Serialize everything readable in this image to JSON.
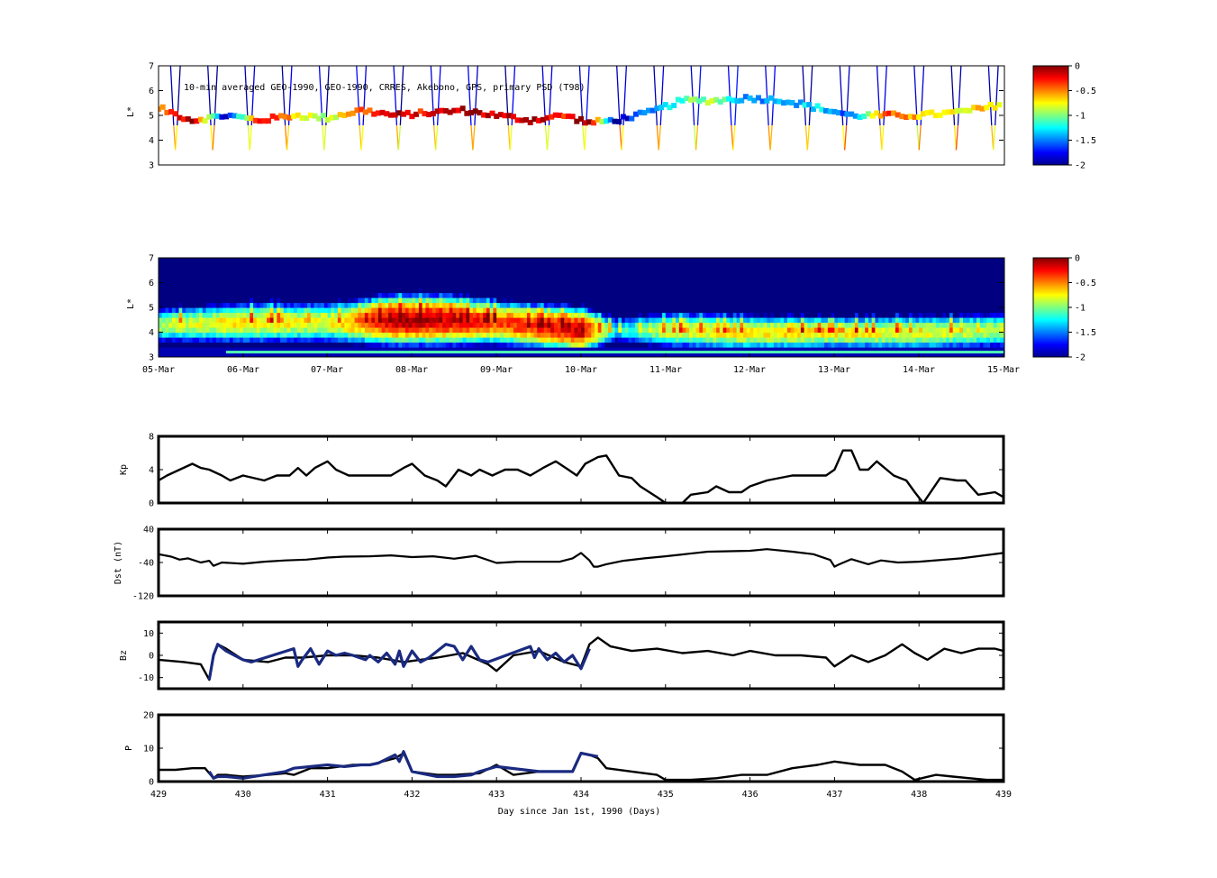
{
  "chart_data": [
    {
      "type": "scatter",
      "title": "10-min averaged GEO-1990, GEO-1990, CRRES, Akebono, GPS, primary PSD (T98)",
      "ylabel": "L*",
      "ylim": [
        3,
        7
      ],
      "yticks": [
        "3",
        "4",
        "5",
        "6",
        "7"
      ],
      "colorbar": {
        "ticks": [
          "0",
          "-0.5",
          "-1",
          "-1.5",
          "-2"
        ],
        "range": [
          -2,
          0
        ]
      },
      "track": {
        "orbit_period_days": 0.44,
        "orbit_start": 429.2,
        "geo_band": [
          {
            "x": 429.0,
            "y": 5.3,
            "c": -0.6
          },
          {
            "x": 429.4,
            "y": 4.8,
            "c": -0.1
          },
          {
            "x": 429.8,
            "y": 5.0,
            "c": -1.9
          },
          {
            "x": 430.2,
            "y": 4.8,
            "c": -0.2
          },
          {
            "x": 430.6,
            "y": 5.0,
            "c": -0.6
          },
          {
            "x": 431.0,
            "y": 4.9,
            "c": -1.0
          },
          {
            "x": 431.4,
            "y": 5.2,
            "c": -0.4
          },
          {
            "x": 431.8,
            "y": 5.0,
            "c": -0.1
          },
          {
            "x": 432.2,
            "y": 5.1,
            "c": -0.3
          },
          {
            "x": 432.6,
            "y": 5.2,
            "c": -0.1
          },
          {
            "x": 433.0,
            "y": 5.0,
            "c": -0.2
          },
          {
            "x": 433.4,
            "y": 4.8,
            "c": -0.05
          },
          {
            "x": 433.8,
            "y": 5.0,
            "c": -0.3
          },
          {
            "x": 434.1,
            "y": 4.7,
            "c": -0.02
          },
          {
            "x": 434.4,
            "y": 4.8,
            "c": -1.9
          },
          {
            "x": 434.8,
            "y": 5.1,
            "c": -1.5
          },
          {
            "x": 435.2,
            "y": 5.6,
            "c": -1.1
          },
          {
            "x": 435.6,
            "y": 5.6,
            "c": -0.9
          },
          {
            "x": 436.0,
            "y": 5.7,
            "c": -1.5
          },
          {
            "x": 436.4,
            "y": 5.6,
            "c": -1.4
          },
          {
            "x": 436.8,
            "y": 5.3,
            "c": -1.3
          },
          {
            "x": 437.2,
            "y": 5.0,
            "c": -1.6
          },
          {
            "x": 437.6,
            "y": 5.0,
            "c": -0.4
          },
          {
            "x": 438.0,
            "y": 5.0,
            "c": -0.6
          },
          {
            "x": 438.4,
            "y": 5.1,
            "c": -0.8
          },
          {
            "x": 438.8,
            "y": 5.3,
            "c": -0.6
          },
          {
            "x": 439.0,
            "y": 5.5,
            "c": -0.7
          }
        ]
      }
    },
    {
      "type": "heatmap",
      "ylabel": "L*",
      "ylim": [
        3,
        7
      ],
      "yticks": [
        "3",
        "4",
        "5",
        "6",
        "7"
      ],
      "xticks": [
        "05-Mar",
        "06-Mar",
        "07-Mar",
        "08-Mar",
        "09-Mar",
        "10-Mar",
        "11-Mar",
        "12-Mar",
        "13-Mar",
        "14-Mar",
        "15-Mar"
      ],
      "colorbar": {
        "ticks": [
          "0",
          "-0.5",
          "-1",
          "-1.5",
          "-2"
        ],
        "range": [
          -2,
          0
        ]
      },
      "belt": [
        {
          "x": 429.0,
          "peak_L": 4.2,
          "peak_c": -0.9,
          "width": 0.7
        },
        {
          "x": 430.0,
          "peak_L": 4.3,
          "peak_c": -0.7,
          "width": 0.8
        },
        {
          "x": 431.0,
          "peak_L": 4.3,
          "peak_c": -0.8,
          "width": 0.8
        },
        {
          "x": 431.8,
          "peak_L": 4.4,
          "peak_c": -0.1,
          "width": 0.9
        },
        {
          "x": 432.4,
          "peak_L": 4.4,
          "peak_c": -0.2,
          "width": 0.9
        },
        {
          "x": 433.0,
          "peak_L": 4.3,
          "peak_c": -0.4,
          "width": 0.8
        },
        {
          "x": 434.0,
          "peak_L": 4.0,
          "peak_c": -0.15,
          "width": 0.8
        },
        {
          "x": 434.4,
          "peak_L": 4.0,
          "peak_c": -1.3,
          "width": 0.6
        },
        {
          "x": 435.0,
          "peak_L": 4.0,
          "peak_c": -0.8,
          "width": 0.7
        },
        {
          "x": 436.0,
          "peak_L": 3.9,
          "peak_c": -0.7,
          "width": 0.7
        },
        {
          "x": 437.0,
          "peak_L": 3.9,
          "peak_c": -0.7,
          "width": 0.6
        },
        {
          "x": 438.0,
          "peak_L": 3.9,
          "peak_c": -0.8,
          "width": 0.7
        },
        {
          "x": 439.0,
          "peak_L": 4.0,
          "peak_c": -0.9,
          "width": 0.7
        }
      ]
    },
    {
      "type": "line",
      "ylabel": "Kp",
      "ylim": [
        0,
        8
      ],
      "yticks": [
        "0",
        "4",
        "8"
      ],
      "series": [
        {
          "x": [
            429.0,
            429.1,
            429.25,
            429.4,
            429.5,
            429.6,
            429.75,
            429.85,
            430.0,
            430.25,
            430.4,
            430.55,
            430.65,
            430.75,
            430.85,
            431.0,
            431.1,
            431.25,
            431.5,
            431.75,
            431.9,
            432.0,
            432.15,
            432.3,
            432.4,
            432.55,
            432.7,
            432.8,
            432.95,
            433.1,
            433.25,
            433.4,
            433.55,
            433.7,
            433.85,
            433.95,
            434.05,
            434.2,
            434.3,
            434.45,
            434.6,
            434.7,
            434.9,
            435.0,
            435.2,
            435.3,
            435.5,
            435.6,
            435.75,
            435.9,
            436.0,
            436.2,
            436.5,
            436.75,
            436.9,
            437.0,
            437.1,
            437.2,
            437.3,
            437.4,
            437.5,
            437.7,
            437.85,
            437.95,
            438.05,
            438.25,
            438.45,
            438.55,
            438.7,
            438.9,
            439.0
          ],
          "values": [
            2.7,
            3.3,
            4,
            4.7,
            4.2,
            4,
            3.3,
            2.7,
            3.3,
            2.7,
            3.3,
            3.3,
            4.2,
            3.3,
            4.2,
            5,
            4,
            3.3,
            3.3,
            3.3,
            4.2,
            4.7,
            3.3,
            2.7,
            2,
            4,
            3.3,
            4,
            3.3,
            4,
            4,
            3.3,
            4.2,
            5,
            4,
            3.3,
            4.7,
            5.5,
            5.7,
            3.3,
            3,
            2,
            0.7,
            0,
            0,
            1,
            1.3,
            2,
            1.3,
            1.3,
            2,
            2.7,
            3.3,
            3.3,
            3.3,
            4,
            6.3,
            6.3,
            4,
            4,
            5,
            3.3,
            2.7,
            1.3,
            0,
            3,
            2.7,
            2.7,
            1,
            1.3,
            0.7
          ]
        }
      ]
    },
    {
      "type": "line",
      "ylabel": "Dst (nT)",
      "ylim": [
        -120,
        40
      ],
      "yticks": [
        "-120",
        "-40",
        "40"
      ],
      "series": [
        {
          "x": [
            429.0,
            429.15,
            429.25,
            429.35,
            429.5,
            429.6,
            429.65,
            429.75,
            430.0,
            430.25,
            430.5,
            430.75,
            431.0,
            431.2,
            431.5,
            431.75,
            432.0,
            432.25,
            432.5,
            432.75,
            433.0,
            433.25,
            433.5,
            433.75,
            433.9,
            434.0,
            434.1,
            434.15,
            434.2,
            434.3,
            434.5,
            434.75,
            435.0,
            435.5,
            436.0,
            436.2,
            436.5,
            436.75,
            436.95,
            437.0,
            437.05,
            437.2,
            437.4,
            437.55,
            437.75,
            438.0,
            438.5,
            439.0
          ],
          "values": [
            -20,
            -26,
            -33,
            -30,
            -40,
            -36,
            -48,
            -40,
            -43,
            -38,
            -35,
            -33,
            -28,
            -26,
            -25,
            -23,
            -27,
            -25,
            -31,
            -24,
            -41,
            -38,
            -38,
            -38,
            -30,
            -17,
            -35,
            -50,
            -50,
            -44,
            -36,
            -30,
            -25,
            -14,
            -12,
            -8,
            -14,
            -20,
            -34,
            -50,
            -45,
            -32,
            -44,
            -35,
            -40,
            -38,
            -30,
            -17
          ]
        }
      ]
    },
    {
      "type": "line",
      "ylabel": "Bz",
      "ylim": [
        -15,
        15
      ],
      "yticks": [
        "-10",
        "0",
        "10"
      ],
      "series": [
        {
          "name": "black",
          "x": [
            429.0,
            429.3,
            429.5,
            429.6,
            429.65,
            429.7,
            429.8,
            430.0,
            430.3,
            430.5,
            430.7,
            431.0,
            431.3,
            431.6,
            431.9,
            432.1,
            432.3,
            432.6,
            432.9,
            433.0,
            433.2,
            433.5,
            433.8,
            434.0,
            434.1,
            434.2,
            434.35,
            434.6,
            434.9,
            435.2,
            435.5,
            435.8,
            436.0,
            436.3,
            436.6,
            436.9,
            437.0,
            437.2,
            437.4,
            437.6,
            437.8,
            437.95,
            438.1,
            438.3,
            438.5,
            438.7,
            438.9,
            439.0
          ],
          "values": [
            -2,
            -3,
            -4,
            -11,
            0,
            5,
            3,
            -2,
            -3,
            -1,
            -1,
            0,
            0,
            -1,
            -3,
            -2,
            -1,
            1,
            -4,
            -7,
            0,
            2,
            -3,
            -5,
            5,
            8,
            4,
            2,
            3,
            1,
            2,
            0,
            2,
            0,
            0,
            -1,
            -5,
            0,
            -3,
            0,
            5,
            1,
            -2,
            3,
            1,
            3,
            3,
            2
          ]
        },
        {
          "name": "blue",
          "x": [
            429.6,
            429.65,
            429.7,
            429.8,
            430.0,
            430.1,
            430.6,
            430.65,
            430.7,
            430.8,
            430.9,
            431.0,
            431.1,
            431.2,
            431.3,
            431.45,
            431.5,
            431.6,
            431.7,
            431.8,
            431.85,
            431.9,
            432.0,
            432.1,
            432.2,
            432.4,
            432.5,
            432.6,
            432.7,
            432.8,
            432.9,
            433.4,
            433.45,
            433.5,
            433.6,
            433.7,
            433.8,
            433.9,
            434.0,
            434.1
          ],
          "values": [
            -11,
            0,
            5,
            2,
            -2,
            -3,
            3,
            -5,
            -2,
            3,
            -4,
            2,
            0,
            1,
            0,
            -2,
            0,
            -3,
            1,
            -4,
            2,
            -5,
            2,
            -3,
            -1,
            5,
            4,
            -2,
            4,
            -2,
            -3,
            4,
            -1,
            3,
            -2,
            1,
            -3,
            0,
            -6,
            3
          ]
        }
      ]
    },
    {
      "type": "line",
      "ylabel": "P",
      "xlabel": "Day since Jan 1st, 1990 (Days)",
      "ylim": [
        0,
        20
      ],
      "yticks": [
        "0",
        "10",
        "20"
      ],
      "xlim": [
        429,
        439
      ],
      "xticks": [
        "429",
        "430",
        "431",
        "432",
        "433",
        "434",
        "435",
        "436",
        "437",
        "438",
        "439"
      ],
      "series": [
        {
          "name": "black",
          "x": [
            429.0,
            429.2,
            429.4,
            429.55,
            429.65,
            429.7,
            429.8,
            430.0,
            430.3,
            430.5,
            430.6,
            430.8,
            431.0,
            431.3,
            431.5,
            431.8,
            431.9,
            432.0,
            432.3,
            432.5,
            432.8,
            433.0,
            433.2,
            433.5,
            433.9,
            434.0,
            434.1,
            434.2,
            434.3,
            434.6,
            434.9,
            435.0,
            435.3,
            435.6,
            435.9,
            436.2,
            436.5,
            436.8,
            437.0,
            437.3,
            437.6,
            437.8,
            437.95,
            438.2,
            438.4,
            438.6,
            438.8,
            439.0
          ],
          "values": [
            3.5,
            3.5,
            4,
            4,
            1,
            2,
            2,
            1.5,
            2,
            2.5,
            2,
            4,
            4,
            5,
            5,
            7,
            8.5,
            3,
            2,
            2,
            2.5,
            5,
            2,
            3,
            3,
            8.5,
            8,
            7,
            4,
            3,
            2,
            0.5,
            0.5,
            1,
            2,
            2,
            4,
            5,
            6,
            5,
            5,
            3,
            0.5,
            2,
            1.5,
            1,
            0.5,
            0.5
          ]
        },
        {
          "name": "blue",
          "x": [
            429.6,
            429.65,
            429.7,
            429.8,
            430.0,
            430.5,
            430.6,
            430.8,
            431.0,
            431.2,
            431.4,
            431.5,
            431.6,
            431.8,
            431.85,
            431.9,
            432.0,
            432.3,
            432.5,
            432.7,
            432.8,
            433.0,
            433.5,
            433.9,
            434.0,
            434.1,
            434.2
          ],
          "values": [
            3,
            1,
            1.5,
            1.5,
            1,
            3,
            4,
            4.5,
            5,
            4.5,
            5,
            5,
            5.5,
            8,
            6,
            9,
            3,
            1.5,
            1.5,
            2,
            3,
            4.5,
            3,
            3,
            8.5,
            8,
            7.5
          ]
        }
      ]
    }
  ]
}
